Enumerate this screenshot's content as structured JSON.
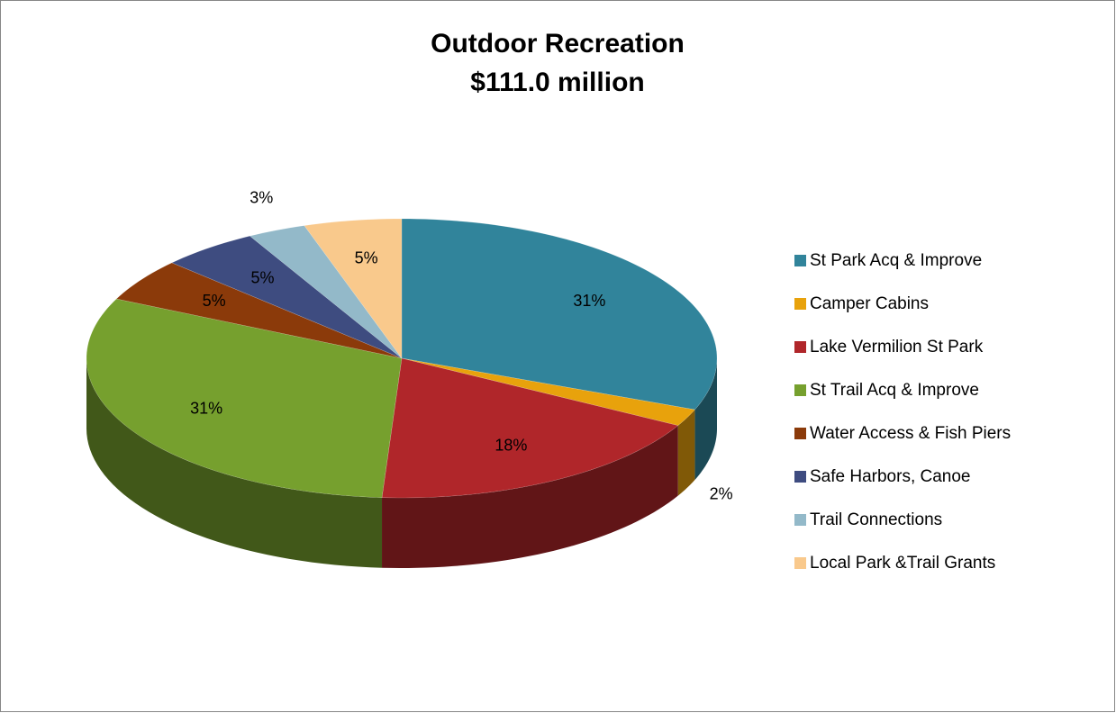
{
  "chart_data": {
    "type": "pie",
    "title": "Outdoor Recreation",
    "subtitle": "$111.0 million",
    "categories": [
      "St Park Acq & Improve",
      "Camper Cabins",
      "Lake Vermilion St Park",
      "St Trail Acq & Improve",
      "Water Access & Fish Piers",
      "Safe Harbors, Canoe",
      "Trail Connections",
      "Local  Park &Trail Grants"
    ],
    "values": [
      31,
      2,
      18,
      31,
      5,
      5,
      3,
      5
    ],
    "value_labels": [
      "31%",
      "2%",
      "18%",
      "31%",
      "5%",
      "5%",
      "3%",
      "5%"
    ],
    "colors": [
      "#31849b",
      "#e8a20c",
      "#b0262a",
      "#76a02e",
      "#8b3a0a",
      "#3e4c80",
      "#93b9c9",
      "#f9c98c"
    ],
    "legend": "right"
  }
}
